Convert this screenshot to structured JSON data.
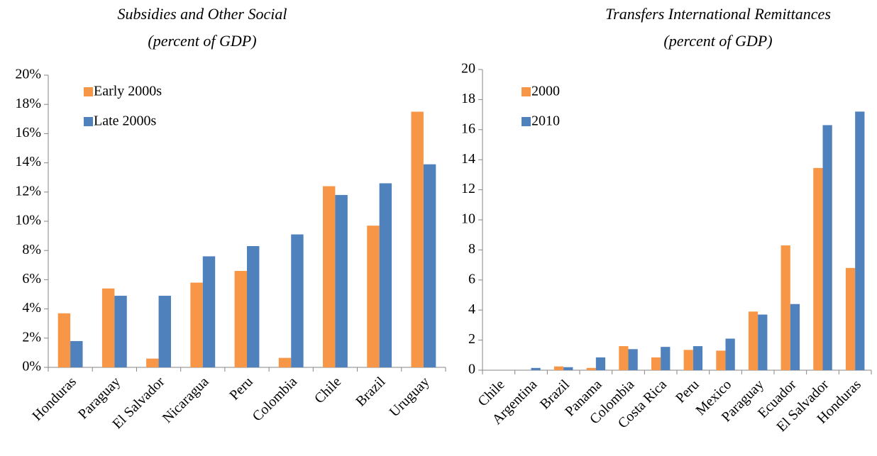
{
  "chart_data": [
    {
      "type": "bar",
      "title": "Subsidies and Other Social",
      "subtitle": "(percent of GDP)",
      "categories": [
        "Honduras",
        "Paraguay",
        "El Salvador",
        "Nicaragua",
        "Peru",
        "Colombia",
        "Chile",
        "Brazil",
        "Uruguay"
      ],
      "series": [
        {
          "name": "Early 2000s",
          "color": "#f79646",
          "values": [
            3.7,
            5.4,
            0.6,
            5.8,
            6.6,
            0.65,
            12.4,
            9.7,
            17.5
          ]
        },
        {
          "name": "Late 2000s",
          "color": "#4f81bd",
          "values": [
            1.8,
            4.9,
            4.9,
            7.6,
            8.3,
            9.1,
            11.8,
            12.6,
            13.9
          ]
        }
      ],
      "ylim": [
        0,
        20
      ],
      "yticks": [
        {
          "value": 0,
          "label": "0%"
        },
        {
          "value": 2,
          "label": "2%"
        },
        {
          "value": 4,
          "label": "4%"
        },
        {
          "value": 6,
          "label": "6%"
        },
        {
          "value": 8,
          "label": "8%"
        },
        {
          "value": 10,
          "label": "10%"
        },
        {
          "value": 12,
          "label": "12%"
        },
        {
          "value": 14,
          "label": "14%"
        },
        {
          "value": 16,
          "label": "16%"
        },
        {
          "value": 18,
          "label": "18%"
        },
        {
          "value": 20,
          "label": "20%"
        }
      ],
      "legend": "upper left"
    },
    {
      "type": "bar",
      "title": "Transfers  International Remittances",
      "subtitle": "(percent of GDP)",
      "categories": [
        "Chile",
        "Argentina",
        "Brazil",
        "Panama",
        "Colombia",
        "Costa Rica",
        "Peru",
        "Mexico",
        "Paraguay",
        "Ecuador",
        "El Salvador",
        "Honduras"
      ],
      "series": [
        {
          "name": "2000",
          "color": "#f79646",
          "values": [
            0,
            0,
            0.25,
            0.15,
            1.6,
            0.85,
            1.35,
            1.3,
            3.9,
            8.3,
            13.45,
            6.8
          ]
        },
        {
          "name": "2010",
          "color": "#4f81bd",
          "values": [
            0,
            0.15,
            0.2,
            0.85,
            1.4,
            1.55,
            1.6,
            2.1,
            3.7,
            4.4,
            16.3,
            17.2
          ]
        }
      ],
      "ylim": [
        0,
        20
      ],
      "yticks": [
        0,
        2,
        4,
        6,
        8,
        10,
        12,
        14,
        16,
        18,
        20
      ],
      "legend": "upper left"
    }
  ]
}
